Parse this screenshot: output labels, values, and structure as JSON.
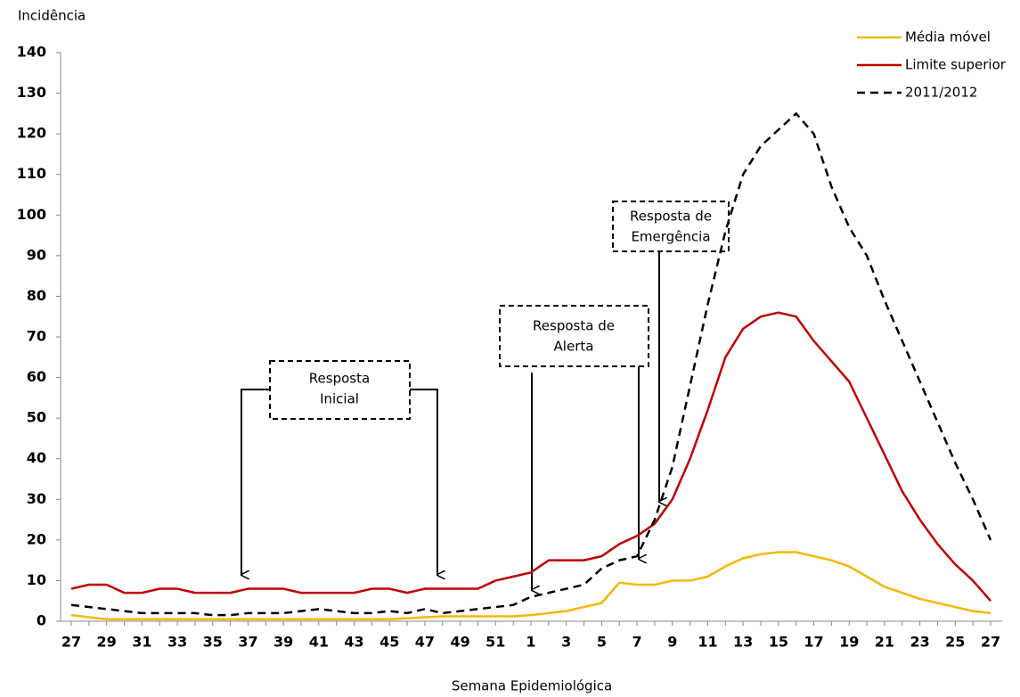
{
  "chart_data": {
    "type": "line",
    "y_label": "Incidência",
    "x_label": "Semana Epidemiológica",
    "categories": [
      "27",
      null,
      "29",
      null,
      "31",
      null,
      "33",
      null,
      "35",
      null,
      "37",
      null,
      "39",
      null,
      "41",
      null,
      "43",
      null,
      "45",
      null,
      "47",
      null,
      "49",
      null,
      "51",
      null,
      "1",
      null,
      "3",
      null,
      "5",
      null,
      "7",
      null,
      "9",
      null,
      "11",
      null,
      "13",
      null,
      "15",
      null,
      "17",
      null,
      "19",
      null,
      "21",
      null,
      "23",
      null,
      "25",
      null,
      "27"
    ],
    "series": [
      {
        "name": "Média móvel",
        "color": "#f5b800",
        "dash": false,
        "values": [
          1.5,
          1,
          0.5,
          0.5,
          0.5,
          0.5,
          0.5,
          0.5,
          0.5,
          0.5,
          0.5,
          0.5,
          0.5,
          0.5,
          0.5,
          0.5,
          0.5,
          0.5,
          0.5,
          0.7,
          1,
          1.2,
          1.2,
          1.2,
          1.2,
          1.2,
          1.5,
          2,
          2.5,
          3.5,
          4.5,
          9.5,
          9,
          9,
          10,
          10,
          11,
          13.5,
          15.5,
          16.5,
          17,
          17,
          16,
          15,
          13.5,
          11,
          8.5,
          7,
          5.5,
          4.5,
          3.5,
          2.5,
          2
        ]
      },
      {
        "name": "Limite superior",
        "color": "#c00000",
        "dash": false,
        "values": [
          8,
          9,
          9,
          7,
          7,
          8,
          8,
          7,
          7,
          7,
          8,
          8,
          8,
          7,
          7,
          7,
          7,
          8,
          8,
          7,
          8,
          8,
          8,
          8,
          10,
          11,
          12,
          15,
          15,
          15,
          16,
          19,
          21,
          24,
          30,
          40,
          52,
          65,
          72,
          75,
          76,
          75,
          69,
          64,
          59,
          50,
          41,
          32,
          25,
          19,
          14,
          10,
          5
        ]
      },
      {
        "name": "2011/2012",
        "color": "#000000",
        "dash": true,
        "values": [
          4,
          3.5,
          3,
          2.5,
          2,
          2,
          2,
          2,
          1.5,
          1.5,
          2,
          2,
          2,
          2.5,
          3,
          2.5,
          2,
          2,
          2.5,
          2,
          3,
          2,
          2.5,
          3,
          3.5,
          4,
          6,
          7,
          8,
          9,
          13,
          15,
          16,
          25,
          38,
          58,
          78,
          96,
          110,
          117,
          121,
          125,
          120,
          107,
          97,
          90,
          79,
          69,
          59,
          49,
          39,
          30,
          20
        ]
      }
    ],
    "ylim": [
      0,
      140
    ],
    "yticks": [
      0,
      10,
      20,
      30,
      40,
      50,
      60,
      70,
      80,
      90,
      100,
      110,
      120,
      130,
      140
    ],
    "annotations": [
      {
        "lines": [
          "Resposta",
          "Inicial"
        ]
      },
      {
        "lines": [
          "Resposta de",
          "Alerta"
        ]
      },
      {
        "lines": [
          "Resposta de",
          "Emergência"
        ]
      }
    ]
  }
}
